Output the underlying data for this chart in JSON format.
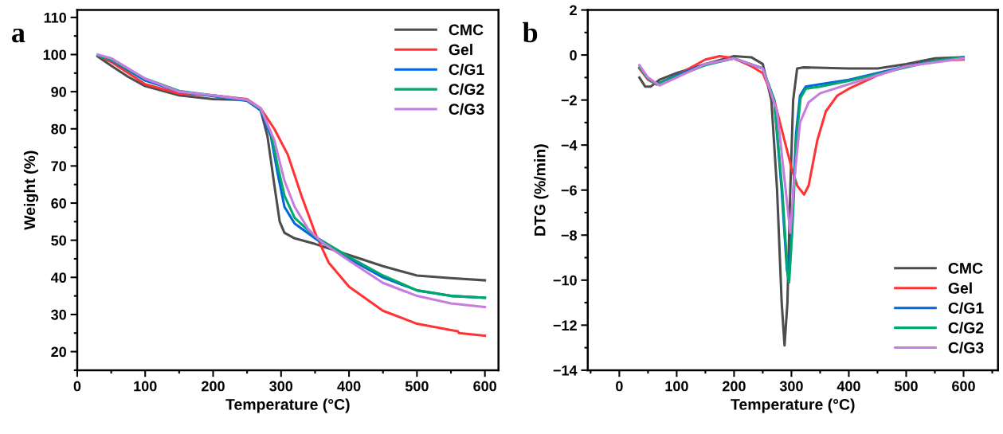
{
  "chart_data": [
    {
      "type": "line",
      "xlabel": "Temperature (°C)",
      "ylabel": "Weight (%)",
      "annotations": [
        "a"
      ],
      "xlim": [
        0,
        620
      ],
      "ylim": [
        15,
        112
      ],
      "xticks": [
        0,
        100,
        200,
        300,
        400,
        500,
        600
      ],
      "yticks": [
        20,
        30,
        40,
        50,
        60,
        70,
        80,
        90,
        100,
        110
      ],
      "legend": "top right",
      "grid": false,
      "marker": "none",
      "line_style": "solid",
      "series": [
        {
          "name": "CMC",
          "color": "#4d4d4d",
          "x": [
            30,
            50,
            75,
            100,
            150,
            200,
            250,
            270,
            280,
            290,
            298,
            305,
            320,
            350,
            400,
            450,
            500,
            550,
            600
          ],
          "values": [
            99.5,
            97,
            94,
            91.5,
            89,
            88,
            87.8,
            85,
            78,
            65,
            55,
            52,
            50.5,
            49,
            46,
            43,
            40.5,
            39.8,
            39.2
          ]
        },
        {
          "name": "Gel",
          "color": "#ff3333",
          "x": [
            30,
            50,
            100,
            150,
            200,
            250,
            270,
            290,
            310,
            330,
            350,
            370,
            400,
            450,
            500,
            550,
            560,
            562,
            600
          ],
          "values": [
            99.8,
            98,
            92,
            89.5,
            89,
            88,
            85.5,
            80,
            73,
            62,
            52,
            44,
            37.5,
            31,
            27.5,
            25.8,
            25.5,
            25,
            24.3
          ]
        },
        {
          "name": "C/G1",
          "color": "#0066dd",
          "x": [
            30,
            50,
            100,
            150,
            200,
            250,
            270,
            285,
            295,
            305,
            320,
            350,
            400,
            450,
            500,
            550,
            600
          ],
          "values": [
            99.8,
            98.5,
            93,
            90,
            88.8,
            87.5,
            85,
            78,
            68,
            59,
            54.5,
            50.5,
            45,
            40,
            36.5,
            35,
            34.5
          ]
        },
        {
          "name": "C/G2",
          "color": "#00a86b",
          "x": [
            30,
            50,
            100,
            150,
            200,
            250,
            270,
            285,
            295,
            305,
            320,
            350,
            400,
            450,
            500,
            550,
            600
          ],
          "values": [
            99.8,
            98.6,
            93.5,
            90.2,
            89,
            87.8,
            85.3,
            79,
            70,
            62,
            56,
            51,
            45.5,
            40.5,
            36.5,
            35,
            34.5
          ]
        },
        {
          "name": "C/G3",
          "color": "#c77ce0",
          "x": [
            30,
            50,
            100,
            150,
            200,
            250,
            270,
            290,
            305,
            320,
            340,
            360,
            400,
            450,
            500,
            550,
            600
          ],
          "values": [
            100,
            99,
            93.5,
            90,
            89,
            87.8,
            85.5,
            77,
            66,
            59,
            53,
            49.5,
            44.5,
            38.5,
            35,
            33,
            32
          ]
        }
      ]
    },
    {
      "type": "line",
      "xlabel": "Temperature (°C)",
      "ylabel": "DTG (%/min)",
      "annotations": [
        "b"
      ],
      "xlim": [
        -55,
        660
      ],
      "ylim": [
        -14,
        2
      ],
      "xticks": [
        0,
        100,
        200,
        300,
        400,
        500,
        600
      ],
      "yticks": [
        {
          "value": -14,
          "label": "−14"
        },
        {
          "value": -12,
          "label": "−12"
        },
        {
          "value": -10,
          "label": "−10"
        },
        {
          "value": -8,
          "label": "−8"
        },
        {
          "value": -6,
          "label": "−6"
        },
        {
          "value": -4,
          "label": "−4"
        },
        {
          "value": -2,
          "label": "−2"
        },
        0,
        2
      ],
      "legend": "bottom right",
      "grid": false,
      "marker": "none",
      "line_style": "solid",
      "series": [
        {
          "name": "CMC",
          "color": "#4d4d4d",
          "x": [
            35,
            45,
            55,
            70,
            100,
            150,
            200,
            230,
            250,
            265,
            275,
            283,
            288,
            293,
            298,
            303,
            310,
            320,
            400,
            450,
            500,
            550,
            600
          ],
          "values": [
            -1.0,
            -1.4,
            -1.4,
            -1.1,
            -0.8,
            -0.4,
            -0.05,
            -0.1,
            -0.4,
            -2,
            -6,
            -11,
            -12.9,
            -11,
            -6,
            -2,
            -0.6,
            -0.55,
            -0.6,
            -0.6,
            -0.4,
            -0.15,
            -0.1
          ]
        },
        {
          "name": "Gel",
          "color": "#ff3333",
          "x": [
            35,
            50,
            65,
            100,
            150,
            175,
            200,
            230,
            250,
            270,
            285,
            300,
            310,
            322,
            330,
            345,
            360,
            380,
            400,
            450,
            500,
            550,
            600
          ],
          "values": [
            -0.6,
            -1.1,
            -1.3,
            -0.9,
            -0.2,
            -0.05,
            -0.15,
            -0.5,
            -0.8,
            -2,
            -3.5,
            -5,
            -5.8,
            -6.2,
            -5.8,
            -3.8,
            -2.5,
            -1.8,
            -1.5,
            -0.9,
            -0.5,
            -0.25,
            -0.2
          ]
        },
        {
          "name": "C/G1",
          "color": "#0066dd",
          "x": [
            65,
            100,
            150,
            200,
            250,
            270,
            283,
            292,
            295,
            300,
            308,
            315,
            325,
            350,
            400,
            450,
            500,
            550,
            600
          ],
          "values": [
            -1.3,
            -0.9,
            -0.4,
            -0.15,
            -0.6,
            -2,
            -6,
            -9.5,
            -10,
            -8,
            -3.5,
            -1.8,
            -1.4,
            -1.3,
            -1.1,
            -0.8,
            -0.5,
            -0.25,
            -0.1
          ]
        },
        {
          "name": "C/G2",
          "color": "#00a86b",
          "x": [
            35,
            50,
            65,
            100,
            150,
            200,
            250,
            270,
            284,
            293,
            296,
            301,
            309,
            316,
            325,
            350,
            400,
            450,
            500,
            550,
            600
          ],
          "values": [
            -0.55,
            -1.05,
            -1.3,
            -0.95,
            -0.45,
            -0.15,
            -0.6,
            -2,
            -6,
            -9.6,
            -10.1,
            -8,
            -3.6,
            -1.9,
            -1.5,
            -1.4,
            -1.15,
            -0.85,
            -0.55,
            -0.25,
            -0.1
          ]
        },
        {
          "name": "C/G3",
          "color": "#c77ce0",
          "x": [
            35,
            50,
            70,
            100,
            150,
            200,
            250,
            275,
            290,
            298,
            305,
            315,
            330,
            350,
            400,
            450,
            500,
            600
          ],
          "values": [
            -0.45,
            -1.0,
            -1.35,
            -1.0,
            -0.4,
            -0.15,
            -0.6,
            -2.5,
            -6,
            -7.9,
            -5.5,
            -3,
            -2.1,
            -1.7,
            -1.3,
            -0.9,
            -0.5,
            -0.15
          ]
        }
      ]
    }
  ]
}
